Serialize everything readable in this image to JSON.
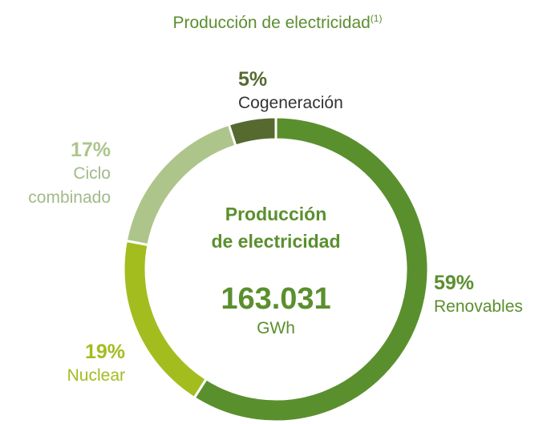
{
  "chart_data": {
    "type": "donut",
    "title": "Producción de electricidad",
    "title_note": "(1)",
    "center_title": [
      "Producción",
      "de electricidad"
    ],
    "total": "163.031",
    "unit": "GWh",
    "categories": [
      "Renovables",
      "Nuclear",
      "Ciclo combinado",
      "Cogeneración"
    ],
    "values": [
      59,
      19,
      17,
      5
    ],
    "value_labels": [
      "59%",
      "19%",
      "17%",
      "5%"
    ],
    "colors": [
      "#5a8f2e",
      "#a3bd1f",
      "#adc58a",
      "#566a30"
    ]
  }
}
